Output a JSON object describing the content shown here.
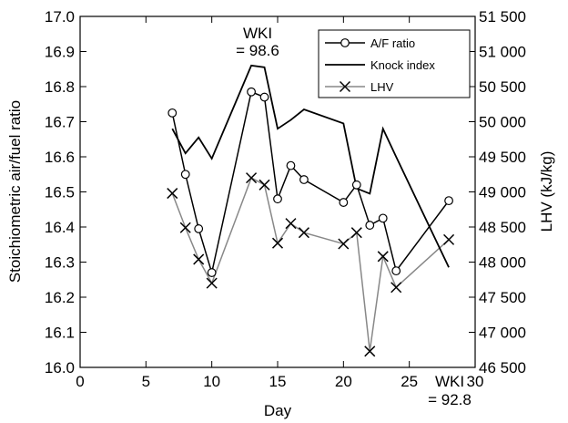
{
  "chart_data": {
    "type": "line",
    "xlabel": "Day",
    "ylabel_left": "Stoichiometric air/fuel ratio",
    "ylabel_right": "LHV  (kJ/kg)",
    "xlim": [
      0,
      30
    ],
    "xticks": [
      0,
      5,
      10,
      15,
      20,
      25,
      30
    ],
    "ylim_left": [
      16.0,
      17.0
    ],
    "yticks_left": [
      "16.0",
      "16.1",
      "16.2",
      "16.3",
      "16.4",
      "16.5",
      "16.6",
      "16.7",
      "16.8",
      "16.9",
      "17.0"
    ],
    "ylim_right": [
      46500,
      51500
    ],
    "yticks_right": [
      "46 500",
      "47 000",
      "47 500",
      "48 000",
      "48 500",
      "49 000",
      "49 500",
      "50 000",
      "50 500",
      "51 000",
      "51 500"
    ],
    "legend_position": "top-right",
    "series": [
      {
        "name": "A/F ratio",
        "axis": "left",
        "marker": "circle",
        "color": "#000000",
        "x": [
          7,
          8,
          9,
          10,
          13,
          14,
          15,
          16,
          17,
          20,
          21,
          22,
          23,
          24,
          28
        ],
        "y": [
          16.725,
          16.55,
          16.395,
          16.27,
          16.785,
          16.77,
          16.48,
          16.575,
          16.535,
          16.47,
          16.52,
          16.405,
          16.425,
          16.275,
          16.475
        ]
      },
      {
        "name": "Knock index",
        "axis": "left",
        "marker": "none",
        "color": "#000000",
        "x": [
          7,
          8,
          9,
          10,
          13,
          14,
          15,
          16,
          17,
          20,
          21,
          22,
          23,
          24,
          28
        ],
        "y": [
          16.68,
          16.61,
          16.655,
          16.595,
          16.86,
          16.855,
          16.68,
          16.705,
          16.735,
          16.695,
          16.51,
          16.495,
          16.68,
          16.6,
          16.285
        ]
      },
      {
        "name": "LHV",
        "axis": "right",
        "marker": "x",
        "color": "#888888",
        "x": [
          7,
          8,
          9,
          10,
          13,
          14,
          15,
          16,
          17,
          20,
          21,
          22,
          23,
          24,
          28
        ],
        "y": [
          48980,
          48490,
          48040,
          47700,
          49200,
          49100,
          48270,
          48550,
          48420,
          48260,
          48420,
          46730,
          48080,
          47640,
          48320
        ]
      }
    ],
    "annotations": [
      {
        "id": "wki_high",
        "lines": [
          "WKI",
          "= 98.6"
        ]
      },
      {
        "id": "wki_low",
        "lines": [
          "WKI",
          "= 92.8"
        ]
      }
    ]
  }
}
